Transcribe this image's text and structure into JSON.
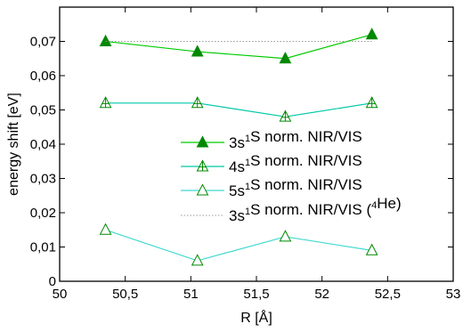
{
  "chart_data": {
    "type": "line",
    "xlabel": "R [Å]",
    "ylabel": "energy shift [eV]",
    "xlim": [
      50,
      53
    ],
    "ylim": [
      0,
      0.08
    ],
    "x_ticks": [
      50,
      50.5,
      51,
      51.5,
      52,
      52.5,
      53
    ],
    "x_tick_labels": [
      "50",
      "50,5",
      "51",
      "51,5",
      "52",
      "52,5",
      "53"
    ],
    "y_ticks": [
      0,
      0.01,
      0.02,
      0.03,
      0.04,
      0.05,
      0.06,
      0.07
    ],
    "y_tick_labels": [
      "0",
      "0,01",
      "0,02",
      "0,03",
      "0,04",
      "0,05",
      "0,06",
      "0,07"
    ],
    "grid": false,
    "legend_position": "center-right",
    "series": [
      {
        "name": "3s¹S norm. NIR/VIS",
        "legend_base": "3s",
        "legend_sup": "1",
        "legend_rest": "S norm. NIR/VIS",
        "marker": "triangle-filled",
        "line_color": "#00cc00",
        "marker_color": "#008800",
        "dashed": false,
        "x": [
          50.35,
          51.05,
          51.72,
          52.38
        ],
        "y": [
          0.07,
          0.067,
          0.065,
          0.072
        ]
      },
      {
        "name": "4s¹S norm. NIR/VIS",
        "legend_base": "4s",
        "legend_sup": "1",
        "legend_rest": "S norm. NIR/VIS",
        "marker": "triangle-cross",
        "line_color": "#00c8a8",
        "marker_color": "#008800",
        "dashed": false,
        "x": [
          50.35,
          51.05,
          51.72,
          52.38
        ],
        "y": [
          0.052,
          0.052,
          0.048,
          0.052
        ]
      },
      {
        "name": "5s¹S norm. NIR/VIS",
        "legend_base": "5s",
        "legend_sup": "1",
        "legend_rest": "S norm. NIR/VIS",
        "marker": "triangle-open",
        "line_color": "#40d8d0",
        "marker_color": "#008800",
        "dashed": false,
        "x": [
          50.35,
          51.05,
          51.72,
          52.38
        ],
        "y": [
          0.015,
          0.006,
          0.013,
          0.009
        ]
      },
      {
        "name": "3s¹S norm. NIR/VIS (⁴He)",
        "legend_base": "3s",
        "legend_sup": "1",
        "legend_rest": "S norm. NIR/VIS (",
        "legend_sup2": "4",
        "legend_rest2": "He)",
        "marker": "none",
        "line_color": "#999999",
        "marker_color": "#999999",
        "dashed": true,
        "x": [
          50.35,
          52.38
        ],
        "y": [
          0.07,
          0.07
        ]
      }
    ]
  }
}
